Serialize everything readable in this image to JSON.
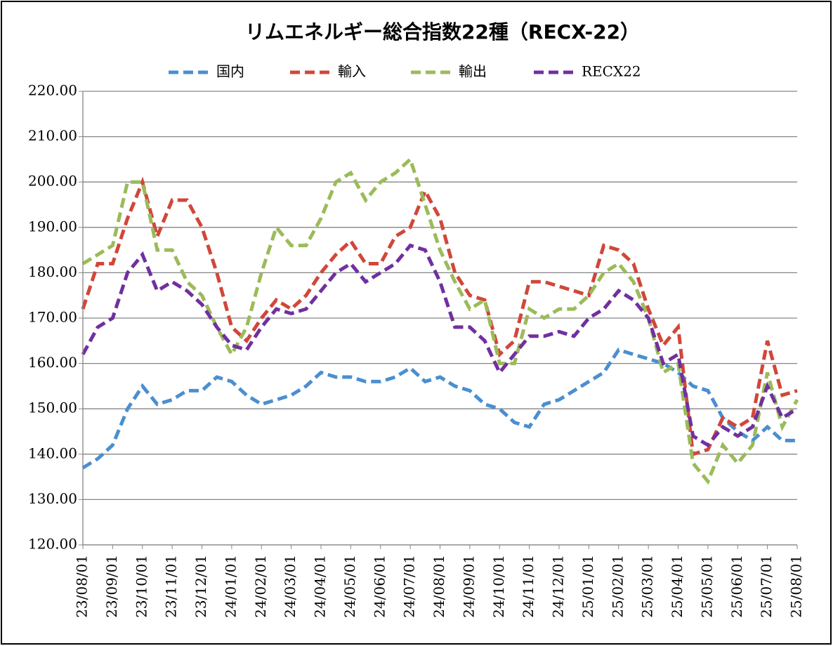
{
  "chart_data": {
    "type": "line",
    "title": "リムエネルギー総合指数22種（RECX-22）",
    "categories": [
      "23/08/01",
      null,
      "23/09/01",
      null,
      "23/10/01",
      null,
      "23/11/01",
      null,
      "23/12/01",
      null,
      "24/01/01",
      null,
      "24/02/01",
      null,
      "24/03/01",
      null,
      "24/04/01",
      null,
      "24/05/01",
      null,
      "24/06/01",
      null,
      "24/07/01",
      null,
      "24/08/01",
      null,
      "24/09/01",
      null,
      "24/10/01",
      null,
      "24/11/01",
      null,
      "24/12/01",
      null,
      "25/01/01",
      null,
      "25/02/01",
      null,
      "25/03/01",
      null,
      "25/04/01",
      null,
      "25/05/01",
      null,
      "25/06/01",
      null,
      "25/07/01",
      null,
      "25/08/01"
    ],
    "series": [
      {
        "name": "国内",
        "color": "#4a8fd0",
        "values": [
          137,
          139,
          142,
          150,
          155,
          151,
          152,
          154,
          154,
          157,
          156,
          153,
          151,
          152,
          153,
          155,
          158,
          157,
          157,
          156,
          156,
          157,
          159,
          156,
          157,
          155,
          154,
          151,
          150,
          147,
          146,
          151,
          152,
          154,
          156,
          158,
          163,
          162,
          161,
          160,
          158,
          155,
          154,
          148,
          145,
          143,
          146,
          143,
          143
        ]
      },
      {
        "name": "輸入",
        "color": "#d0473a",
        "values": [
          172,
          182,
          182,
          192,
          200,
          188,
          196,
          196,
          190,
          180,
          168,
          165,
          170,
          174,
          172,
          175,
          180,
          184,
          187,
          182,
          182,
          188,
          190,
          198,
          192,
          180,
          175,
          174,
          162,
          165,
          178,
          178,
          177,
          176,
          175,
          186,
          185,
          182,
          172,
          164,
          168,
          140,
          141,
          148,
          146,
          148,
          165,
          153,
          154
        ]
      },
      {
        "name": "輸出",
        "color": "#9bbb59",
        "values": [
          182,
          184,
          186,
          200,
          200,
          185,
          185,
          178,
          175,
          168,
          162,
          168,
          180,
          190,
          186,
          186,
          192,
          200,
          202,
          196,
          200,
          202,
          205,
          195,
          185,
          178,
          172,
          174,
          160,
          160,
          172,
          170,
          172,
          172,
          175,
          180,
          182,
          178,
          170,
          158,
          160,
          138,
          134,
          142,
          138,
          142,
          158,
          146,
          152
        ]
      },
      {
        "name": "RECX22",
        "color": "#7030a0",
        "values": [
          162,
          168,
          170,
          180,
          184,
          176,
          178,
          176,
          173,
          168,
          164,
          163,
          168,
          172,
          171,
          172,
          176,
          180,
          182,
          178,
          180,
          182,
          186,
          185,
          178,
          168,
          168,
          165,
          158,
          162,
          166,
          166,
          167,
          166,
          170,
          172,
          176,
          174,
          170,
          160,
          162,
          144,
          142,
          146,
          144,
          146,
          155,
          148,
          150
        ]
      }
    ],
    "ylim": [
      120,
      220
    ],
    "yticks": [
      {
        "value": 120,
        "label": "120.00"
      },
      {
        "value": 130,
        "label": "130.00"
      },
      {
        "value": 140,
        "label": "140.00"
      },
      {
        "value": 150,
        "label": "150.00"
      },
      {
        "value": 160,
        "label": "160.00"
      },
      {
        "value": 170,
        "label": "170.00"
      },
      {
        "value": 180,
        "label": "180.00"
      },
      {
        "value": 190,
        "label": "190.00"
      },
      {
        "value": 200,
        "label": "200.00"
      },
      {
        "value": 210,
        "label": "210.00"
      },
      {
        "value": 220,
        "label": "220.00"
      }
    ],
    "grid": true,
    "legend": "top"
  }
}
